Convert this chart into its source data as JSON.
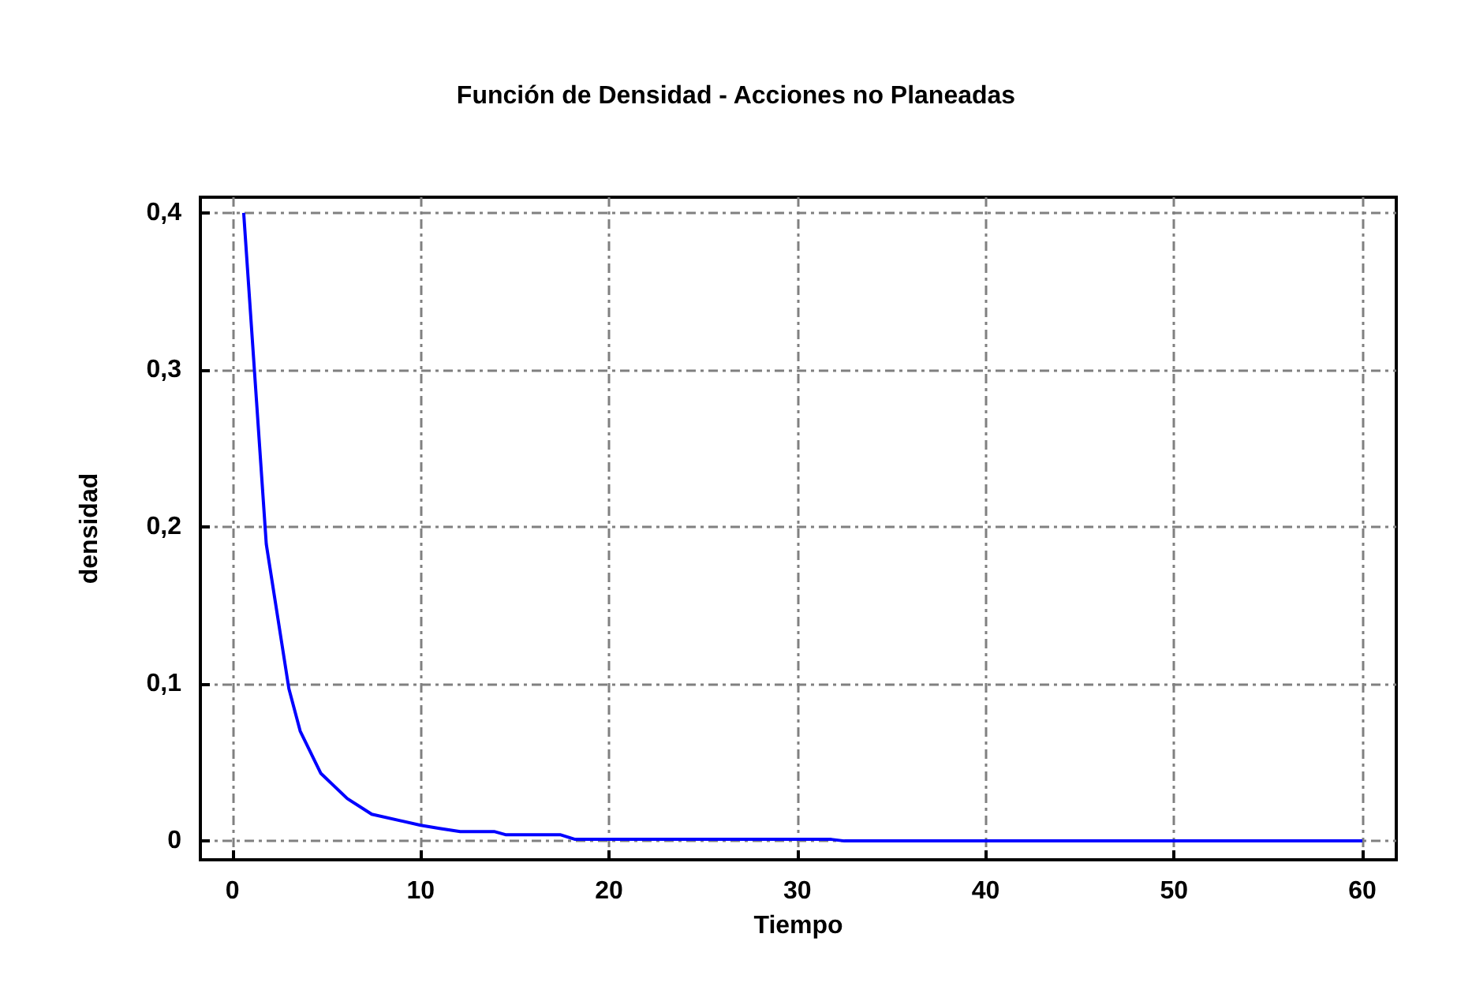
{
  "chart_data": {
    "type": "line",
    "title": "Función de Densidad - Acciones no Planeadas",
    "xlabel": "Tiempo",
    "ylabel": "densidad",
    "series": [
      {
        "color": "#0000ff",
        "x": [
          0.6,
          1.8,
          3.0,
          3.6,
          4.7,
          6.1,
          7.4,
          10,
          11,
          12.1,
          13.9,
          14.5,
          17.4,
          18.2,
          31.8,
          32.5,
          60
        ],
        "values": [
          0.4,
          0.189,
          0.097,
          0.07,
          0.043,
          0.027,
          0.017,
          0.01,
          0.008,
          0.006,
          0.006,
          0.004,
          0.004,
          0.001,
          0.001,
          0,
          0
        ]
      }
    ],
    "xlim": [
      -1.7,
      61.8
    ],
    "ylim": [
      -0.012,
      0.41
    ],
    "xticks": [
      0,
      10,
      20,
      30,
      40,
      50,
      60
    ],
    "yticks": [
      {
        "value": 0,
        "label": "0"
      },
      {
        "value": 0.1,
        "label": "0,1"
      },
      {
        "value": 0.2,
        "label": "0,2"
      },
      {
        "value": 0.3,
        "label": "0,3"
      },
      {
        "value": 0.4,
        "label": "0,4"
      }
    ],
    "grid": true,
    "marker": "none",
    "line_style": "solid"
  }
}
